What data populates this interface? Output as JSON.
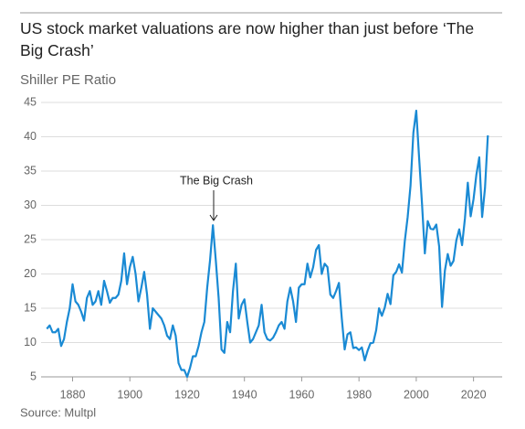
{
  "chart_data": {
    "type": "line",
    "title": "US stock market valuations are now higher than just before ‘The Big Crash’",
    "subtitle": "Shiller PE Ratio",
    "source": "Source: Multpl",
    "annotation": "The Big Crash",
    "xlim": [
      1869,
      2030
    ],
    "xticks": [
      1880,
      1900,
      1920,
      1940,
      1960,
      1980,
      2000,
      2020
    ],
    "ylim": [
      5,
      45
    ],
    "yticks": [
      5,
      10,
      15,
      20,
      25,
      30,
      35,
      40,
      45
    ],
    "grid": true,
    "x": [
      1871,
      1872,
      1873,
      1874,
      1875,
      1876,
      1877,
      1878,
      1879,
      1880,
      1881,
      1882,
      1883,
      1884,
      1885,
      1886,
      1887,
      1888,
      1889,
      1890,
      1891,
      1892,
      1893,
      1894,
      1895,
      1896,
      1897,
      1898,
      1899,
      1900,
      1901,
      1902,
      1903,
      1904,
      1905,
      1906,
      1907,
      1908,
      1909,
      1910,
      1911,
      1912,
      1913,
      1914,
      1915,
      1916,
      1917,
      1918,
      1919,
      1920,
      1921,
      1922,
      1923,
      1924,
      1925,
      1926,
      1927,
      1928,
      1929,
      1930,
      1931,
      1932,
      1933,
      1934,
      1935,
      1936,
      1937,
      1938,
      1939,
      1940,
      1941,
      1942,
      1943,
      1944,
      1945,
      1946,
      1947,
      1948,
      1949,
      1950,
      1951,
      1952,
      1953,
      1954,
      1955,
      1956,
      1957,
      1958,
      1959,
      1960,
      1961,
      1962,
      1963,
      1964,
      1965,
      1966,
      1967,
      1968,
      1969,
      1970,
      1971,
      1972,
      1973,
      1974,
      1975,
      1976,
      1977,
      1978,
      1979,
      1980,
      1981,
      1982,
      1983,
      1984,
      1985,
      1986,
      1987,
      1988,
      1989,
      1990,
      1991,
      1992,
      1993,
      1994,
      1995,
      1996,
      1997,
      1998,
      1999,
      2000,
      2001,
      2002,
      2003,
      2004,
      2005,
      2006,
      2007,
      2008,
      2009,
      2010,
      2011,
      2012,
      2013,
      2014,
      2015,
      2016,
      2017,
      2018,
      2019,
      2020,
      2021,
      2022,
      2023,
      2024,
      2025
    ],
    "series": [
      {
        "name": "Shiller PE Ratio",
        "color": "#1a8ad4",
        "values": [
          12,
          12.5,
          11.5,
          11.5,
          12,
          9.5,
          10.5,
          13,
          15,
          18.5,
          16,
          15.5,
          14.5,
          13.2,
          16.5,
          17.5,
          15.5,
          16,
          17.5,
          15.5,
          19,
          17.5,
          15.8,
          16.5,
          16.5,
          17,
          19,
          23,
          18.5,
          21,
          22.5,
          20,
          16,
          18,
          20.3,
          17,
          12,
          15,
          14.5,
          14,
          13.5,
          12.5,
          11,
          10.5,
          12.5,
          11,
          7,
          6,
          6,
          5,
          6.3,
          8,
          8,
          9.5,
          11.5,
          13,
          18,
          22,
          27.1,
          22,
          16.5,
          9,
          8.5,
          13,
          11.5,
          17.5,
          21.5,
          13.5,
          15.5,
          16.3,
          13,
          10,
          10.5,
          11.5,
          12.5,
          15.5,
          11.5,
          10.5,
          10.3,
          10.7,
          11.5,
          12.5,
          13,
          12,
          16,
          18,
          16,
          13,
          18,
          18.5,
          18.5,
          21.5,
          19.5,
          21,
          23.5,
          24.2,
          20,
          21.5,
          21,
          17,
          16.5,
          17.5,
          18.7,
          13.5,
          9,
          11.2,
          11.5,
          9.2,
          9.3,
          8.9,
          9.3,
          7.4,
          8.8,
          9.9,
          10,
          11.8,
          15,
          13.9,
          15.1,
          17.1,
          15.6,
          19.8,
          20.3,
          21.4,
          20.2,
          24.8,
          28.3,
          32.9,
          40.6,
          43.8,
          36.9,
          30.3,
          23,
          27.7,
          26.6,
          26.5,
          27.2,
          24,
          15.2,
          20.5,
          22.9,
          21.2,
          21.9,
          24.9,
          26.5,
          24.2,
          28.1,
          33.3,
          28.4,
          30.9,
          34.5,
          37,
          28.3,
          32.5,
          40.2
        ]
      }
    ]
  }
}
